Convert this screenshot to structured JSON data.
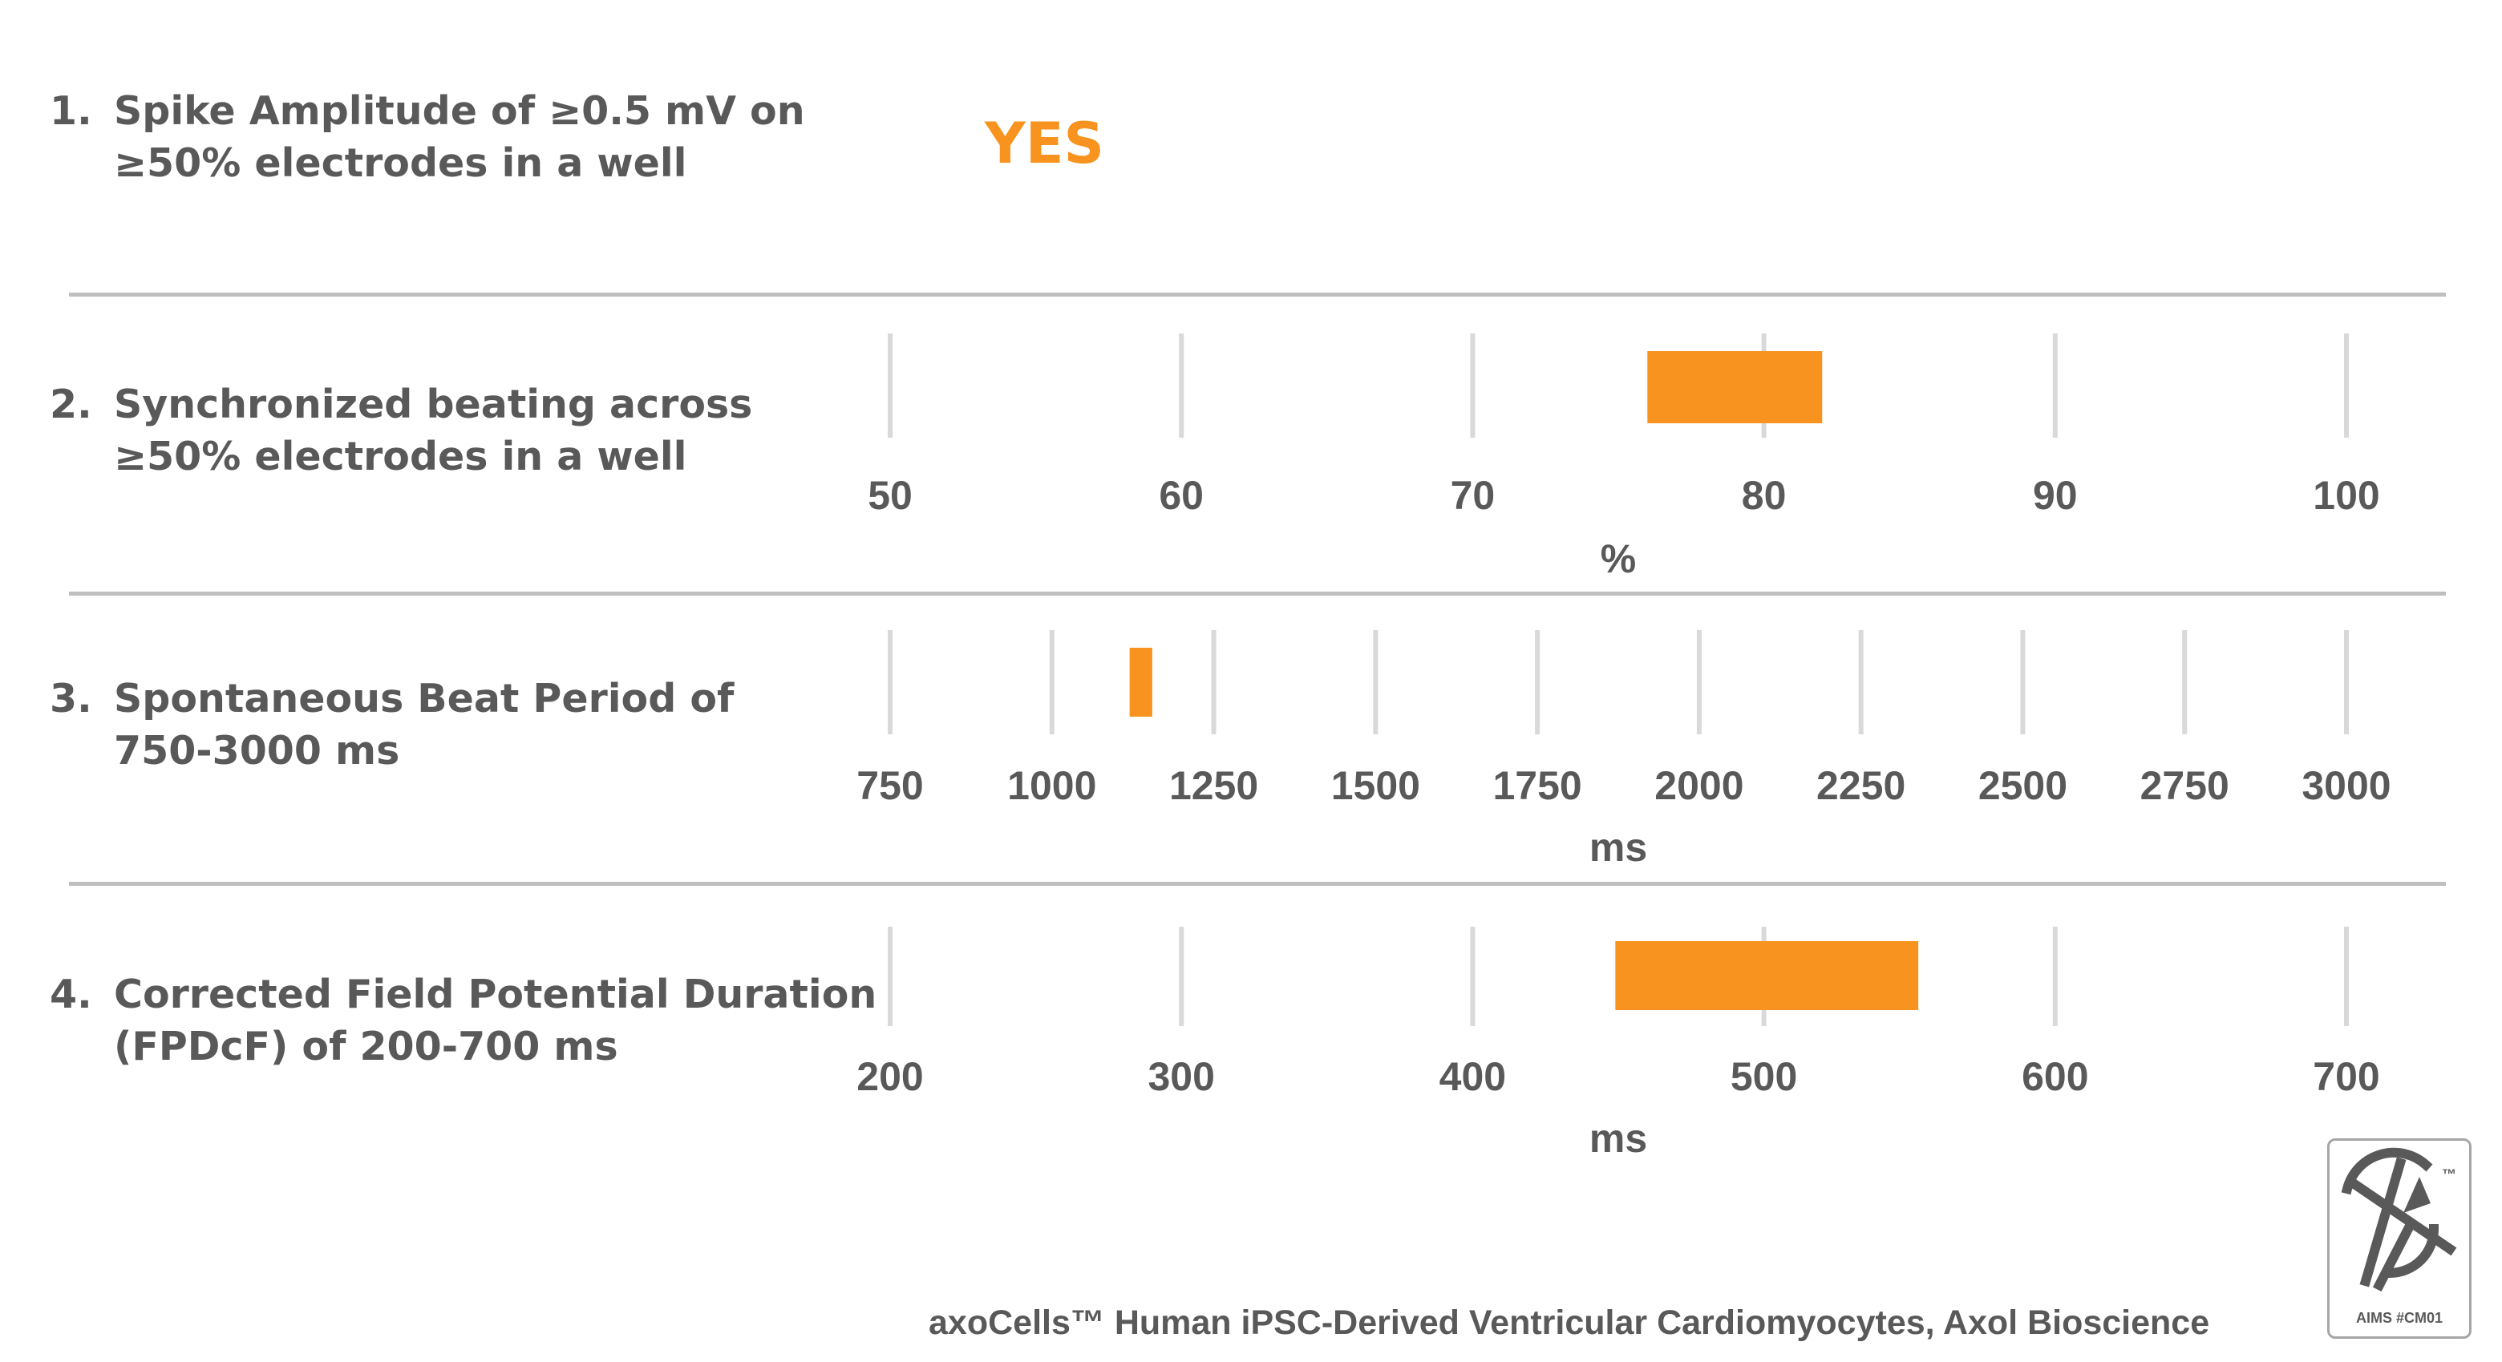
{
  "criteria": [
    {
      "num": "1.",
      "line1": "Spike Amplitude of ≥0.5 mV on",
      "line2": "≥50% electrodes in a well"
    },
    {
      "num": "2.",
      "line1": "Synchronized beating across",
      "line2": "≥50% electrodes in a well"
    },
    {
      "num": "3.",
      "line1": "Spontaneous Beat Period of",
      "line2": "750-3000 ms"
    },
    {
      "num": "4.",
      "line1": "Corrected Field Potential Duration",
      "line2": "(FPDcF) of 200-700 ms"
    }
  ],
  "yes_label": "YES",
  "colors": {
    "bar": "#F7931E",
    "text": "#595959",
    "grid": "#d9d9d9",
    "divider": "#bfbfbf"
  },
  "chart_data": [
    {
      "type": "bar",
      "orientation": "horizontal-range",
      "xlabel": "%",
      "xlim": [
        50,
        100
      ],
      "ticks": [
        50,
        60,
        70,
        80,
        90,
        100
      ],
      "range": [
        76,
        82
      ]
    },
    {
      "type": "bar",
      "orientation": "horizontal-range",
      "xlabel": "ms",
      "xlim": [
        750,
        3000
      ],
      "ticks": [
        750,
        1000,
        1250,
        1500,
        1750,
        2000,
        2250,
        2500,
        2750,
        3000
      ],
      "range": [
        1120,
        1155
      ]
    },
    {
      "type": "bar",
      "orientation": "horizontal-range",
      "xlabel": "ms",
      "xlim": [
        200,
        700
      ],
      "ticks": [
        200,
        300,
        400,
        500,
        600,
        700
      ],
      "range": [
        449,
        553
      ]
    }
  ],
  "footer": "axoCells™ Human iPSC-Derived Ventricular Cardiomyocytes,  Axol Bioscience",
  "logo": {
    "code": "AIMS #CM01",
    "tm": "™"
  }
}
